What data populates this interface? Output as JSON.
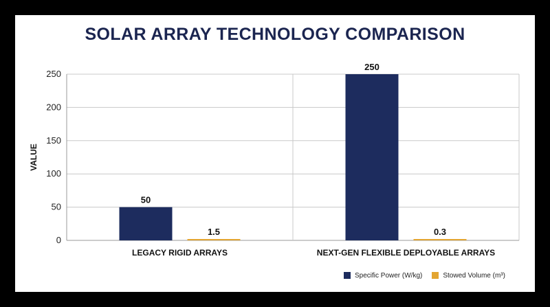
{
  "chart_data": {
    "type": "bar",
    "title": "SOLAR ARRAY TECHNOLOGY COMPARISON",
    "ylabel": "VALUE",
    "xlabel": "",
    "categories": [
      "LEGACY RIGID ARRAYS",
      "NEXT-GEN FLEXIBLE DEPLOYABLE ARRAYS"
    ],
    "series": [
      {
        "name": "Specific Power (W/kg)",
        "values": [
          50,
          250
        ],
        "labels": [
          "50",
          "250"
        ],
        "color": "#1d2c5e"
      },
      {
        "name": "Stowed Volume (m³)",
        "values": [
          1.5,
          0.3
        ],
        "labels": [
          "1.5",
          "0.3"
        ],
        "color": "#e3a531"
      }
    ],
    "ylim": [
      0,
      250
    ],
    "yticks": [
      0,
      50,
      100,
      150,
      200,
      250
    ],
    "grid": true,
    "legend_position": "bottom-right"
  }
}
